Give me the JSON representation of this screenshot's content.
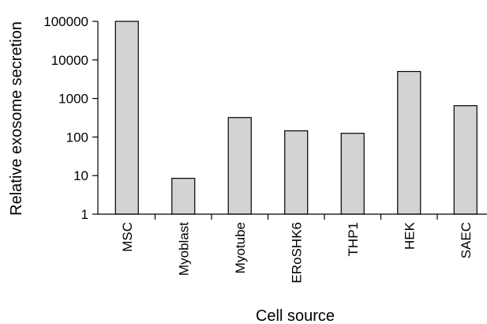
{
  "chart_data": {
    "type": "bar",
    "title": "",
    "xlabel": "Cell source",
    "ylabel": "Relative exosome secretion",
    "yscale": "log",
    "ylim": [
      1,
      100000
    ],
    "yticks": [
      1,
      10,
      100,
      1000,
      10000,
      100000
    ],
    "ytick_labels": [
      "1",
      "10",
      "100",
      "1000",
      "10000",
      "100000"
    ],
    "categories": [
      "MSC",
      "Myoblast",
      "Myotube",
      "ERoSHK6",
      "THP1",
      "HEK",
      "SAEC"
    ],
    "values": [
      100000,
      8.5,
      320,
      145,
      125,
      5000,
      650
    ],
    "bar_color": "#d3d3d3",
    "edge_color": "#000000",
    "grid": false,
    "legend": "none"
  }
}
